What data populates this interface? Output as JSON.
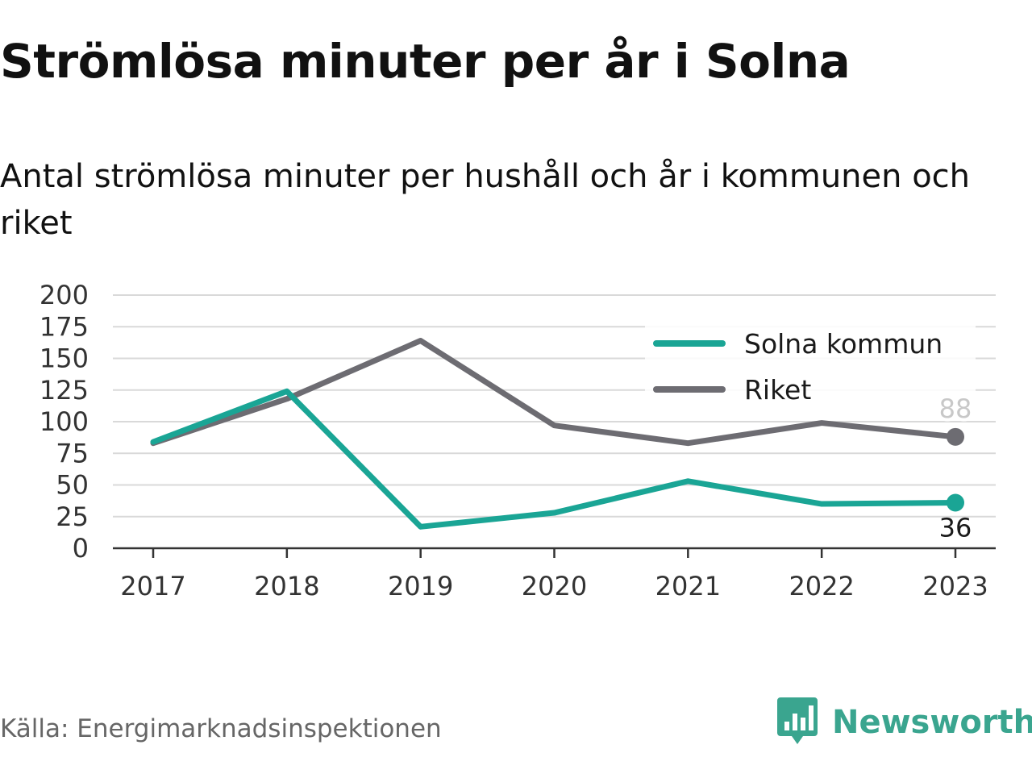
{
  "header": {
    "title": "Strömlösa minuter per år i Solna",
    "subtitle": "Antal strömlösa minuter per hushåll och år i kommunen och riket"
  },
  "footer": {
    "source": "Källa: Energimarknadsinspektionen",
    "brand": "Newsworthy",
    "brand_icon": "bar-chart-speech-bubble-icon"
  },
  "colors": {
    "solna": "#1aa595",
    "riket": "#6d6c72",
    "grid": "#d9d9d9",
    "axis": "#333333",
    "brand": "#3aa58f"
  },
  "chart_data": {
    "type": "line",
    "title": "Strömlösa minuter per år i Solna",
    "subtitle": "Antal strömlösa minuter per hushåll och år i kommunen och riket",
    "xlabel": "",
    "ylabel": "",
    "x": [
      "2017",
      "2018",
      "2019",
      "2020",
      "2021",
      "2022",
      "2023"
    ],
    "ylim": [
      0,
      200
    ],
    "yticks": [
      "0",
      "25",
      "50",
      "75",
      "100",
      "125",
      "150",
      "175",
      "200"
    ],
    "grid": true,
    "legend_position": "top-right",
    "series": [
      {
        "name": "Solna kommun",
        "color": "#1aa595",
        "values": [
          84,
          124,
          17,
          28,
          53,
          35,
          36
        ],
        "end_label": "36"
      },
      {
        "name": "Riket",
        "color": "#6d6c72",
        "values": [
          83,
          118,
          164,
          97,
          83,
          99,
          88
        ],
        "end_label": "88"
      }
    ]
  }
}
